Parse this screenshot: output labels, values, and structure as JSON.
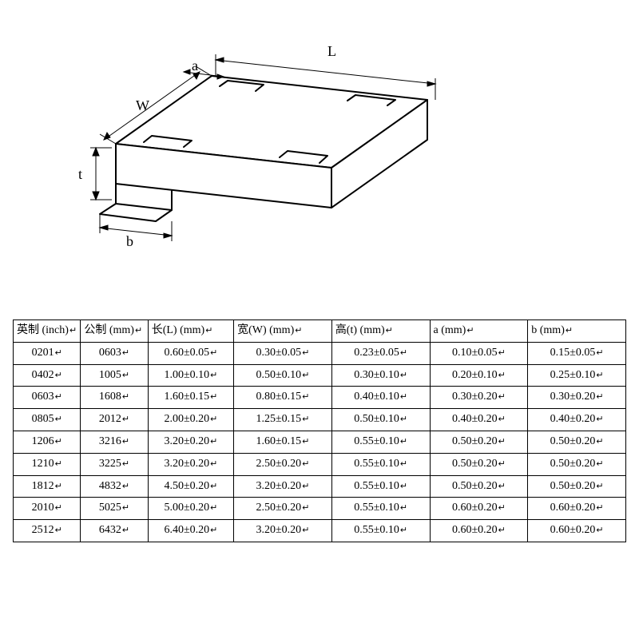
{
  "diagram": {
    "labels": {
      "L": "L",
      "W": "W",
      "t": "t",
      "a": "a",
      "b": "b"
    },
    "stroke": "#000000",
    "line_width_main": 2,
    "line_width_dim": 1
  },
  "table": {
    "return_mark": "↵",
    "columns": [
      "英制 (inch)",
      "公制 (mm)",
      "长(L) (mm)",
      "宽(W) (mm)",
      "高(t) (mm)",
      "a (mm)",
      "b (mm)"
    ],
    "rows": [
      [
        "0201",
        "0603",
        "0.60±0.05",
        "0.30±0.05",
        "0.23±0.05",
        "0.10±0.05",
        "0.15±0.05"
      ],
      [
        "0402",
        "1005",
        "1.00±0.10",
        "0.50±0.10",
        "0.30±0.10",
        "0.20±0.10",
        "0.25±0.10"
      ],
      [
        "0603",
        "1608",
        "1.60±0.15",
        "0.80±0.15",
        "0.40±0.10",
        "0.30±0.20",
        "0.30±0.20"
      ],
      [
        "0805",
        "2012",
        "2.00±0.20",
        "1.25±0.15",
        "0.50±0.10",
        "0.40±0.20",
        "0.40±0.20"
      ],
      [
        "1206",
        "3216",
        "3.20±0.20",
        "1.60±0.15",
        "0.55±0.10",
        "0.50±0.20",
        "0.50±0.20"
      ],
      [
        "1210",
        "3225",
        "3.20±0.20",
        "2.50±0.20",
        "0.55±0.10",
        "0.50±0.20",
        "0.50±0.20"
      ],
      [
        "1812",
        "4832",
        "4.50±0.20",
        "3.20±0.20",
        "0.55±0.10",
        "0.50±0.20",
        "0.50±0.20"
      ],
      [
        "2010",
        "5025",
        "5.00±0.20",
        "2.50±0.20",
        "0.55±0.10",
        "0.60±0.20",
        "0.60±0.20"
      ],
      [
        "2512",
        "6432",
        "6.40±0.20",
        "3.20±0.20",
        "0.55±0.10",
        "0.60±0.20",
        "0.60±0.20"
      ]
    ],
    "border_color": "#000000",
    "text_color": "#000000",
    "font_size_pt": 11,
    "background": "#ffffff"
  }
}
